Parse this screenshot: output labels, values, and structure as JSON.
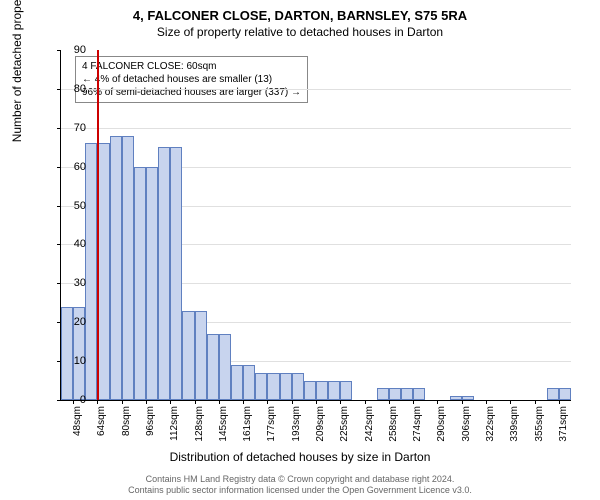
{
  "title_main": "4, FALCONER CLOSE, DARTON, BARNSLEY, S75 5RA",
  "title_sub": "Size of property relative to detached houses in Darton",
  "ylabel": "Number of detached properties",
  "xlabel": "Distribution of detached houses by size in Darton",
  "chart": {
    "type": "histogram",
    "ylim": [
      0,
      90
    ],
    "ytick_step": 10,
    "grid_color": "#e0e0e0",
    "background_color": "#ffffff",
    "bar_fill": "#c8d4ee",
    "bar_stroke": "#6080c0",
    "refline_color": "#cc0000",
    "refline_x_index": 1.5,
    "x_categories": [
      "48sqm",
      "64sqm",
      "80sqm",
      "96sqm",
      "112sqm",
      "128sqm",
      "145sqm",
      "161sqm",
      "177sqm",
      "193sqm",
      "209sqm",
      "225sqm",
      "242sqm",
      "258sqm",
      "274sqm",
      "290sqm",
      "306sqm",
      "322sqm",
      "339sqm",
      "355sqm",
      "371sqm"
    ],
    "bin_values": [
      24,
      24,
      66,
      66,
      68,
      68,
      60,
      60,
      65,
      65,
      23,
      23,
      17,
      17,
      9,
      9,
      7,
      7,
      7,
      7,
      5,
      5,
      5,
      5,
      0,
      0,
      3,
      3,
      3,
      3,
      0,
      0,
      1,
      1,
      0,
      0,
      0,
      0,
      0,
      0,
      3,
      3
    ]
  },
  "annotation": {
    "line1": "4 FALCONER CLOSE: 60sqm",
    "line2": "← 4% of detached houses are smaller (13)",
    "line3": "96% of semi-detached houses are larger (337) →"
  },
  "footer": {
    "line1": "Contains HM Land Registry data © Crown copyright and database right 2024.",
    "line2": "Contains public sector information licensed under the Open Government Licence v3.0."
  }
}
